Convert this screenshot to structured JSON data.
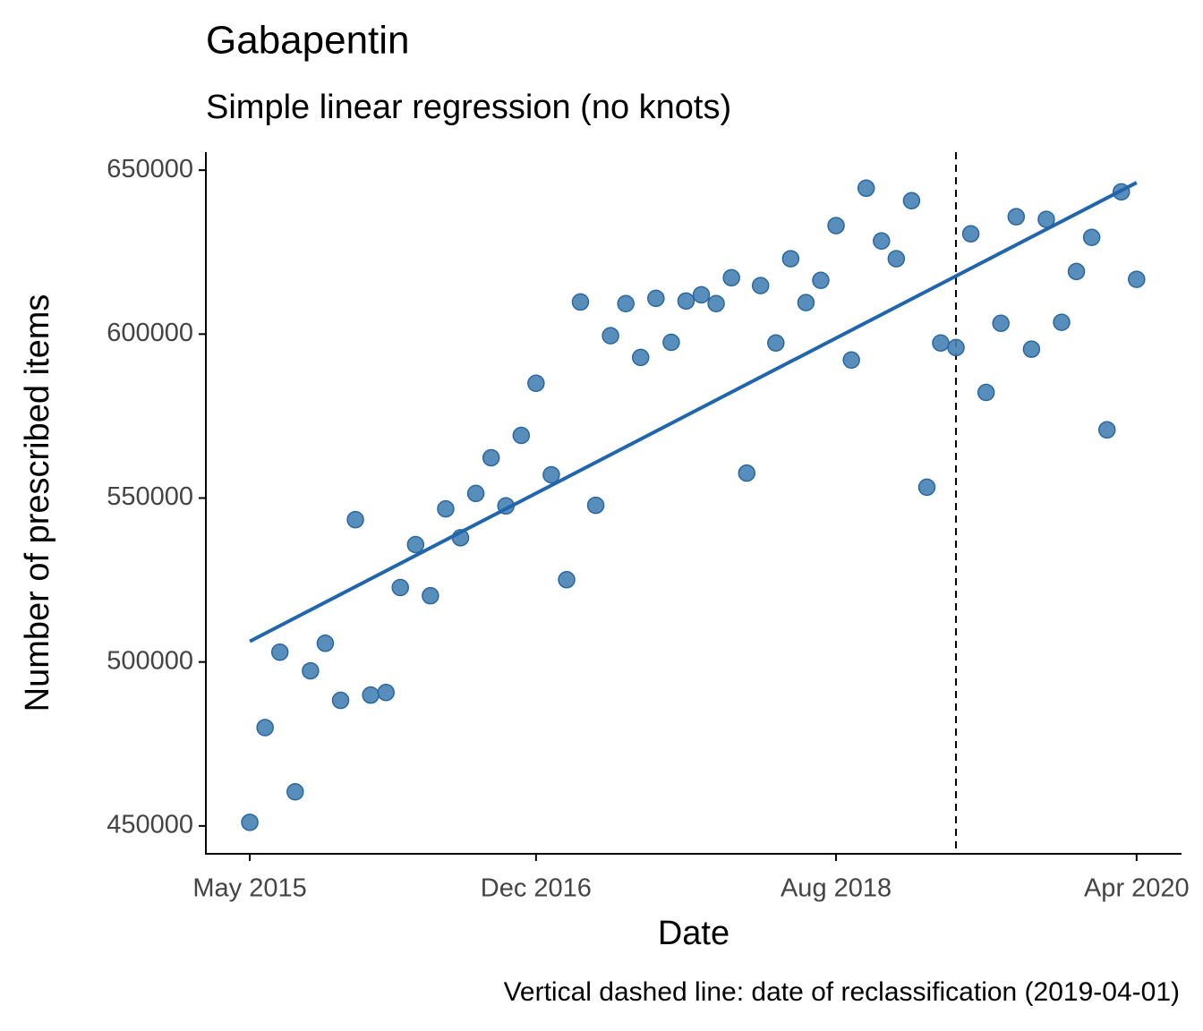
{
  "chart_data": {
    "type": "scatter",
    "title": "Gabapentin",
    "subtitle": "Simple linear regression (no knots)",
    "x_label": "Date",
    "y_label": "Number of prescribed items",
    "caption": "Vertical dashed line: date of reclassification (2019-04-01)",
    "color": "#4682b4",
    "x": [
      "2015-05",
      "2015-06",
      "2015-07",
      "2015-08",
      "2015-09",
      "2015-10",
      "2015-11",
      "2015-12",
      "2016-01",
      "2016-02",
      "2016-03",
      "2016-04",
      "2016-05",
      "2016-06",
      "2016-07",
      "2016-08",
      "2016-09",
      "2016-10",
      "2016-11",
      "2016-12",
      "2017-01",
      "2017-02",
      "2017-03",
      "2017-04",
      "2017-05",
      "2017-06",
      "2017-07",
      "2017-08",
      "2017-09",
      "2017-10",
      "2017-11",
      "2017-12",
      "2018-01",
      "2018-02",
      "2018-03",
      "2018-04",
      "2018-05",
      "2018-06",
      "2018-07",
      "2018-08",
      "2018-09",
      "2018-10",
      "2018-11",
      "2018-12",
      "2019-01",
      "2019-02",
      "2019-03",
      "2019-04",
      "2019-05",
      "2019-06",
      "2019-07",
      "2019-08",
      "2019-09",
      "2019-10",
      "2019-11",
      "2019-12",
      "2020-01",
      "2020-02",
      "2020-03",
      "2020-04"
    ],
    "values": [
      451100,
      480000,
      503000,
      460400,
      497300,
      505700,
      488300,
      543400,
      489900,
      490700,
      522700,
      535800,
      520200,
      546700,
      537900,
      551400,
      562300,
      547600,
      569100,
      585000,
      557100,
      525100,
      609800,
      547800,
      599500,
      609300,
      592900,
      610900,
      597500,
      610100,
      612000,
      609300,
      617200,
      557600,
      614800,
      597300,
      623000,
      609600,
      616400,
      633100,
      592100,
      644500,
      628400,
      623000,
      640700,
      553300,
      597300,
      595900,
      630600,
      582200,
      603300,
      635800,
      595400,
      635000,
      603600,
      619100,
      629500,
      570800,
      643400,
      616700
    ],
    "trend": {
      "x": [
        "2015-05",
        "2020-04"
      ],
      "values": [
        506300,
        646200
      ],
      "color": "#2166ac"
    },
    "vline": "2019-04-01",
    "xlim": [
      "2015-02",
      "2020-07"
    ],
    "ylim": [
      441500,
      655500
    ],
    "xticks": [
      {
        "value": "2015-05",
        "label": "May 2015"
      },
      {
        "value": "2016-12",
        "label": "Dec 2016"
      },
      {
        "value": "2018-08",
        "label": "Aug 2018"
      },
      {
        "value": "2020-04",
        "label": "Apr 2020"
      }
    ],
    "yticks": [
      450000,
      500000,
      550000,
      600000,
      650000
    ]
  }
}
